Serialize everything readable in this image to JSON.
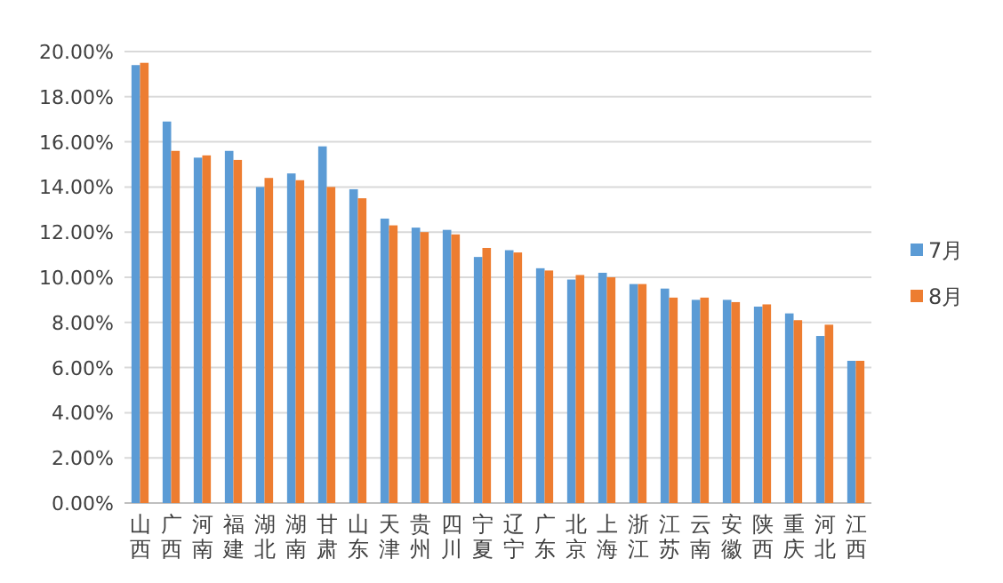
{
  "chart_data": {
    "type": "bar",
    "categories": [
      "山西",
      "广西",
      "河南",
      "福建",
      "湖北",
      "湖南",
      "甘肃",
      "山东",
      "天津",
      "贵州",
      "四川",
      "宁夏",
      "辽宁",
      "广东",
      "北京",
      "上海",
      "浙江",
      "江苏",
      "云南",
      "安徽",
      "陕西",
      "重庆",
      "河北",
      "江西"
    ],
    "series": [
      {
        "name": "7月",
        "color": "#5b9bd5",
        "values": [
          19.4,
          16.9,
          15.3,
          15.6,
          14.0,
          14.6,
          15.8,
          13.9,
          12.6,
          12.2,
          12.1,
          10.9,
          11.2,
          10.4,
          9.9,
          10.2,
          9.7,
          9.5,
          9.0,
          9.0,
          8.7,
          8.4,
          7.4,
          6.3
        ]
      },
      {
        "name": "8月",
        "color": "#ed7d31",
        "values": [
          19.5,
          15.6,
          15.4,
          15.2,
          14.4,
          14.3,
          14.0,
          13.5,
          12.3,
          12.0,
          11.9,
          11.3,
          11.1,
          10.3,
          10.1,
          10.0,
          9.7,
          9.1,
          9.1,
          8.9,
          8.8,
          8.1,
          7.9,
          6.3
        ]
      }
    ],
    "ylim": [
      0,
      20
    ],
    "yticks": [
      {
        "value": 0,
        "label": "0.00%"
      },
      {
        "value": 2,
        "label": "2.00%"
      },
      {
        "value": 4,
        "label": "4.00%"
      },
      {
        "value": 6,
        "label": "6.00%"
      },
      {
        "value": 8,
        "label": "8.00%"
      },
      {
        "value": 10,
        "label": "10.00%"
      },
      {
        "value": 12,
        "label": "12.00%"
      },
      {
        "value": 14,
        "label": "14.00%"
      },
      {
        "value": 16,
        "label": "16.00%"
      },
      {
        "value": 18,
        "label": "18.00%"
      },
      {
        "value": 20,
        "label": "20.00%"
      }
    ],
    "grid": "y",
    "legend": "right"
  }
}
